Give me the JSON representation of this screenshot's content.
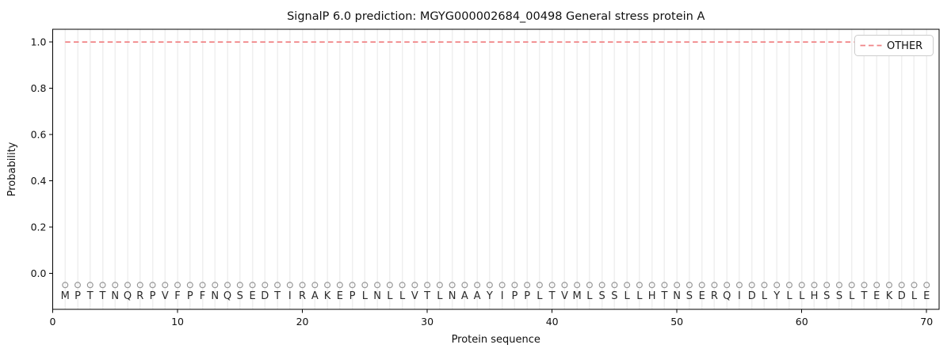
{
  "chart_data": {
    "type": "line",
    "title": "SignalP 6.0 prediction: MGYG000002684_00498 General stress protein A",
    "xlabel": "Protein sequence",
    "ylabel": "Probability",
    "xlim": [
      0,
      71
    ],
    "ylim": [
      -0.155,
      1.055
    ],
    "x_tick_values": [
      0,
      10,
      20,
      30,
      40,
      50,
      60,
      70
    ],
    "x_tick_labels": [
      "0",
      "10",
      "20",
      "30",
      "40",
      "50",
      "60",
      "70"
    ],
    "y_tick_values": [
      0.0,
      0.2,
      0.4,
      0.6,
      0.8,
      1.0
    ],
    "y_tick_labels": [
      "0.0",
      "0.2",
      "0.4",
      "0.6",
      "0.8",
      "1.0"
    ],
    "grid": {
      "vertical_per_residue": true,
      "color": "#efefef"
    },
    "frame_color": "#000000",
    "series": [
      {
        "name": "OTHER",
        "color": "#f08486",
        "linestyle": "dashed",
        "x_start": 1,
        "values": [
          1,
          1,
          1,
          1,
          1,
          1,
          1,
          1,
          1,
          1,
          1,
          1,
          1,
          1,
          1,
          1,
          1,
          1,
          1,
          1,
          1,
          1,
          1,
          1,
          1,
          1,
          1,
          1,
          1,
          1,
          1,
          1,
          1,
          1,
          1,
          1,
          1,
          1,
          1,
          1,
          1,
          1,
          1,
          1,
          1,
          1,
          1,
          1,
          1,
          1,
          1,
          1,
          1,
          1,
          1,
          1,
          1,
          1,
          1,
          1,
          1,
          1,
          1,
          1,
          1,
          1,
          1,
          1,
          1,
          1
        ]
      }
    ],
    "sequence_row": {
      "sequence": "MPTTNQRPVFPFNQSEDTIRAKEPLNLLVTLNAAYIPPLTVMLSSLLHTNSERQIDLYLLHSSLTEKDLE",
      "marker": "o",
      "marker_color": "#999999",
      "marker_y": -0.05,
      "letter_y": -0.095,
      "letter_color": "#2b2b2b"
    },
    "legend": {
      "position": "upper right",
      "entries": [
        {
          "label": "OTHER",
          "color": "#f08486",
          "linestyle": "dashed"
        }
      ]
    }
  }
}
